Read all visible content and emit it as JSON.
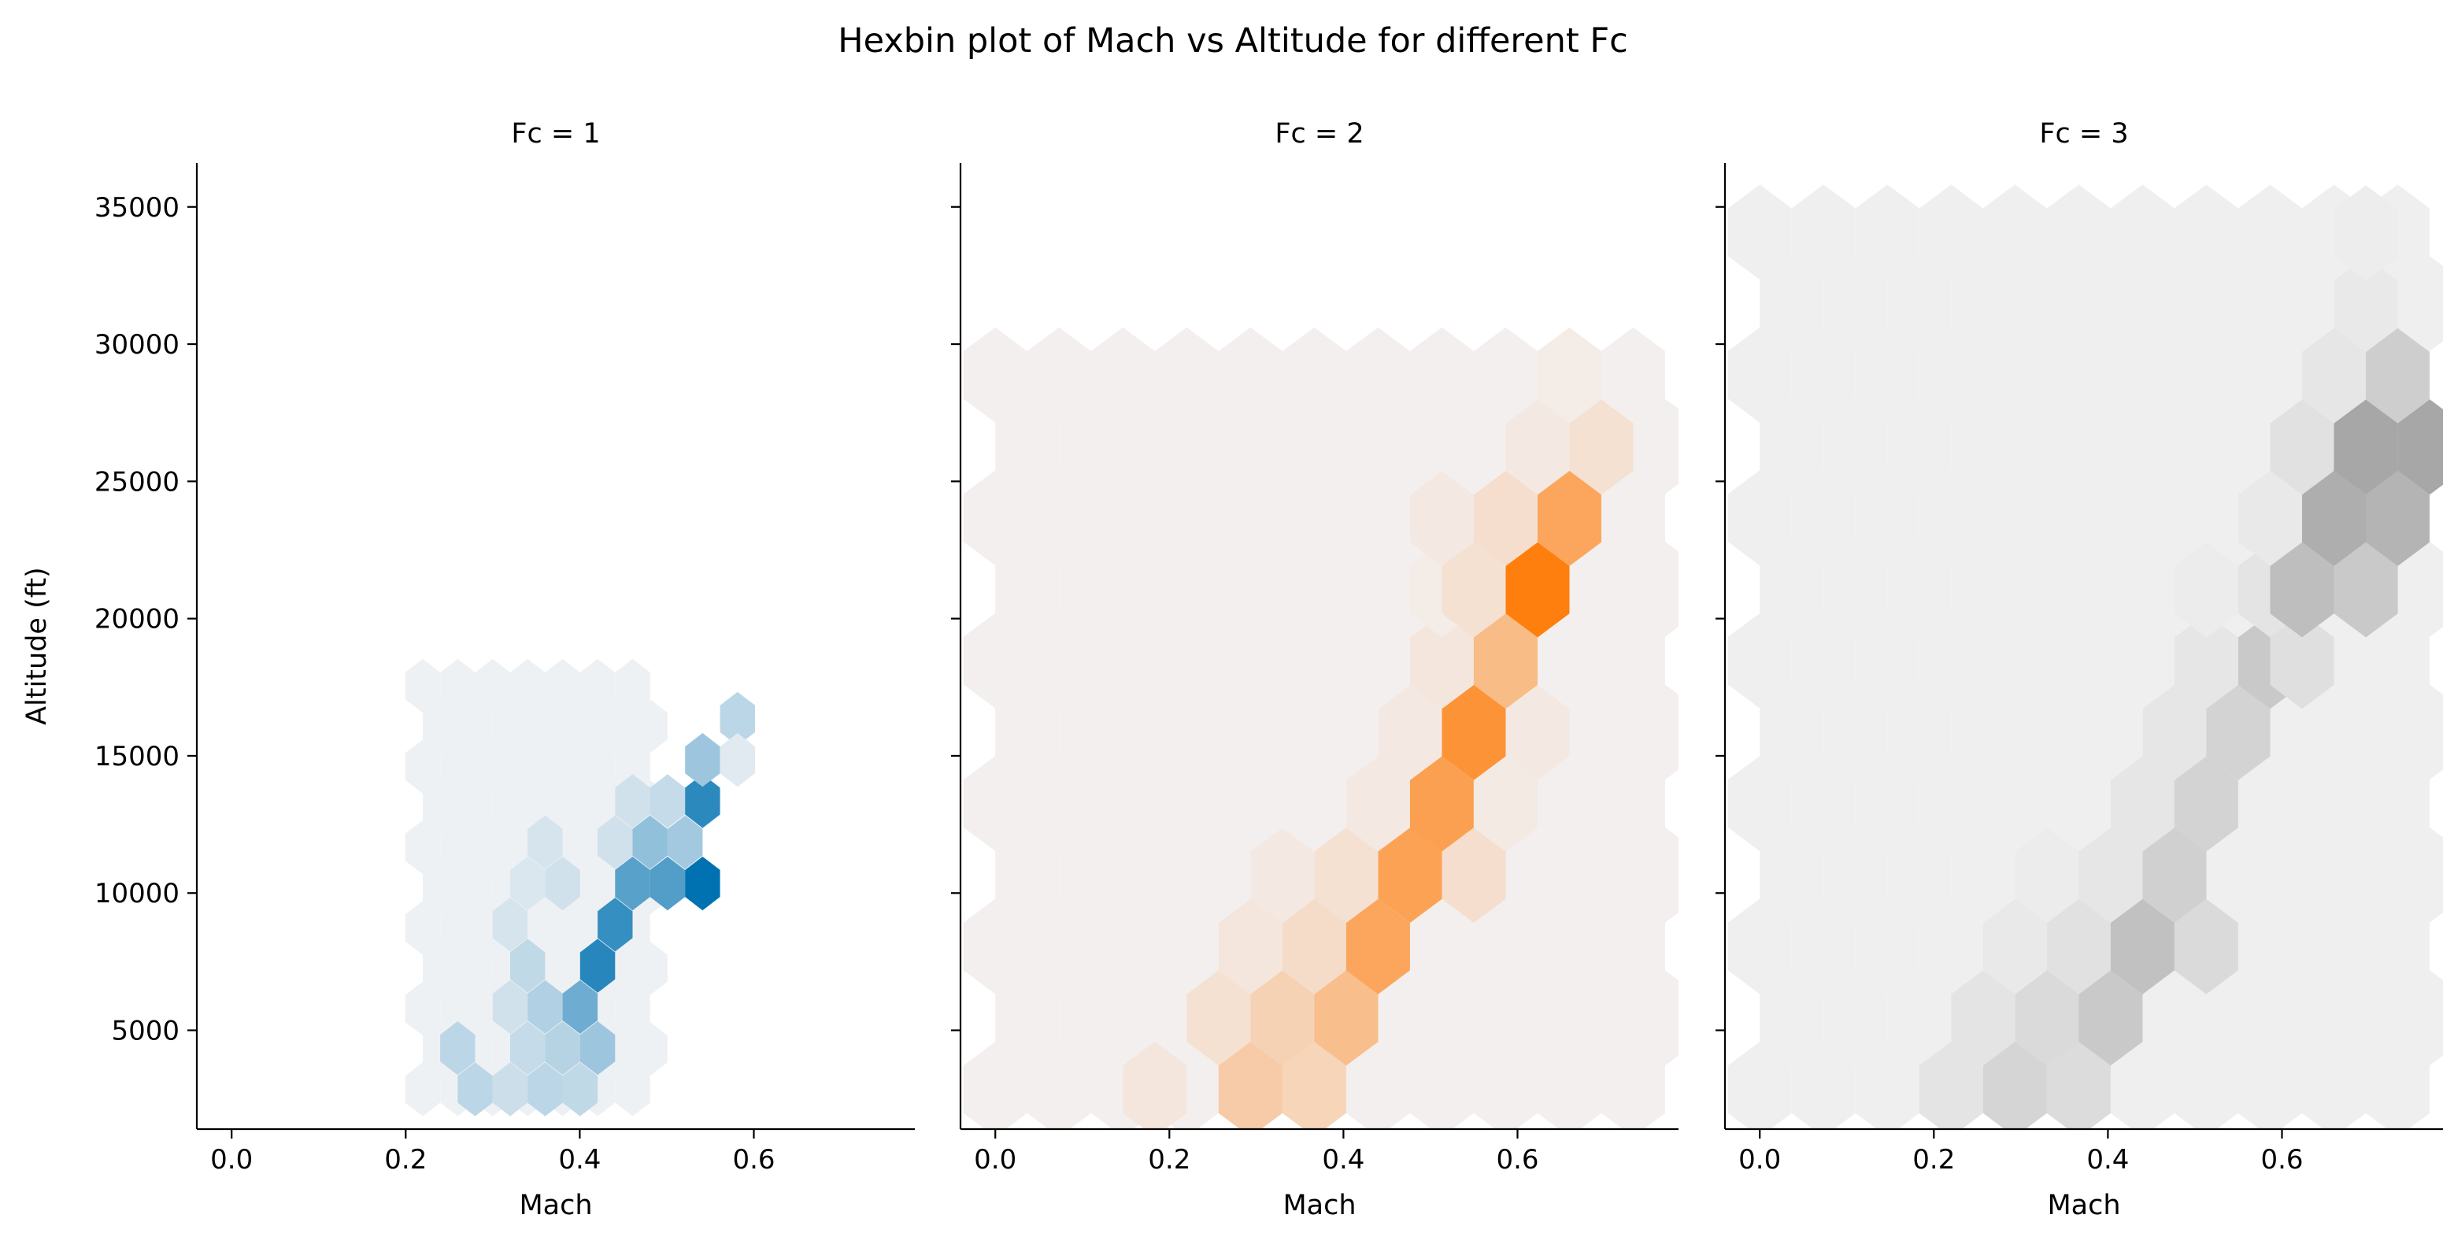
{
  "figure": {
    "title": "Hexbin plot of Mach vs Altitude for different Fc"
  },
  "chart_data": {
    "type": "heatmap",
    "subtype": "hexbin",
    "xlabel": "Mach",
    "ylabel": "Altitude (ft)",
    "xlim": [
      -0.04,
      0.785
    ],
    "ylim": [
      1400,
      36600
    ],
    "xticks": [
      0.0,
      0.2,
      0.4,
      0.6
    ],
    "xtick_labels": [
      "0.0",
      "0.2",
      "0.4",
      "0.6"
    ],
    "yticks": [
      5000,
      10000,
      15000,
      20000,
      25000,
      30000,
      35000
    ],
    "ytick_labels": [
      "5000",
      "10000",
      "15000",
      "20000",
      "25000",
      "30000",
      "35000"
    ],
    "sharey": true,
    "panels": [
      {
        "title": "Fc = 1",
        "color": "#0072b2",
        "light": "#eef1f4",
        "hex_width": 0.0402,
        "hex_height": 1960,
        "x_start": 0.2195,
        "y_start": 2850,
        "cols": 7,
        "rows": 11,
        "cells": [
          {
            "x": 0.2597,
            "y": 4350,
            "v": 0.18
          },
          {
            "x": 0.2798,
            "y": 2850,
            "v": 0.18
          },
          {
            "x": 0.32,
            "y": 2850,
            "v": 0.12
          },
          {
            "x": 0.3602,
            "y": 2850,
            "v": 0.18
          },
          {
            "x": 0.4004,
            "y": 2850,
            "v": 0.16
          },
          {
            "x": 0.3401,
            "y": 4350,
            "v": 0.14
          },
          {
            "x": 0.3803,
            "y": 4350,
            "v": 0.2
          },
          {
            "x": 0.4205,
            "y": 4350,
            "v": 0.3
          },
          {
            "x": 0.32,
            "y": 5850,
            "v": 0.1
          },
          {
            "x": 0.3602,
            "y": 5850,
            "v": 0.22
          },
          {
            "x": 0.4004,
            "y": 5850,
            "v": 0.5
          },
          {
            "x": 0.3401,
            "y": 7350,
            "v": 0.16
          },
          {
            "x": 0.4205,
            "y": 7350,
            "v": 0.82
          },
          {
            "x": 0.32,
            "y": 8850,
            "v": 0.08
          },
          {
            "x": 0.4406,
            "y": 8850,
            "v": 0.75
          },
          {
            "x": 0.3401,
            "y": 10350,
            "v": 0.06
          },
          {
            "x": 0.3803,
            "y": 10350,
            "v": 0.1
          },
          {
            "x": 0.4607,
            "y": 10350,
            "v": 0.6
          },
          {
            "x": 0.5009,
            "y": 10350,
            "v": 0.62
          },
          {
            "x": 0.5411,
            "y": 10350,
            "v": 1.0
          },
          {
            "x": 0.3602,
            "y": 11850,
            "v": 0.08
          },
          {
            "x": 0.4406,
            "y": 11850,
            "v": 0.1
          },
          {
            "x": 0.4808,
            "y": 11850,
            "v": 0.35
          },
          {
            "x": 0.521,
            "y": 11850,
            "v": 0.28
          },
          {
            "x": 0.4607,
            "y": 13350,
            "v": 0.1
          },
          {
            "x": 0.5009,
            "y": 13350,
            "v": 0.14
          },
          {
            "x": 0.5411,
            "y": 13350,
            "v": 0.8
          },
          {
            "x": 0.5411,
            "y": 14850,
            "v": 0.3
          },
          {
            "x": 0.5813,
            "y": 16350,
            "v": 0.18
          },
          {
            "x": 0.5813,
            "y": 14850,
            "v": 0.04
          }
        ]
      },
      {
        "title": "Fc = 2",
        "color": "#ff7f0e",
        "light": "#f3efee",
        "hex_width": 0.0733,
        "hex_height": 3470,
        "x_start": -0.0,
        "y_start": 2850,
        "cols": 11,
        "rows": 11,
        "cells": [
          {
            "x": 0.1833,
            "y": 2850,
            "v": 0.06
          },
          {
            "x": 0.2932,
            "y": 2850,
            "v": 0.28
          },
          {
            "x": 0.3665,
            "y": 2850,
            "v": 0.2
          },
          {
            "x": 0.2565,
            "y": 5450,
            "v": 0.1
          },
          {
            "x": 0.3299,
            "y": 5450,
            "v": 0.22
          },
          {
            "x": 0.4032,
            "y": 5450,
            "v": 0.4
          },
          {
            "x": 0.2932,
            "y": 8050,
            "v": 0.06
          },
          {
            "x": 0.3665,
            "y": 8050,
            "v": 0.14
          },
          {
            "x": 0.4398,
            "y": 8050,
            "v": 0.62
          },
          {
            "x": 0.3299,
            "y": 10650,
            "v": 0.04
          },
          {
            "x": 0.4032,
            "y": 10650,
            "v": 0.1
          },
          {
            "x": 0.4765,
            "y": 10650,
            "v": 0.66
          },
          {
            "x": 0.5498,
            "y": 10650,
            "v": 0.12
          },
          {
            "x": 0.4398,
            "y": 13250,
            "v": 0.04
          },
          {
            "x": 0.5131,
            "y": 13250,
            "v": 0.68
          },
          {
            "x": 0.5864,
            "y": 13250,
            "v": 0.03
          },
          {
            "x": 0.4765,
            "y": 15850,
            "v": 0.04
          },
          {
            "x": 0.5498,
            "y": 15850,
            "v": 0.8
          },
          {
            "x": 0.6231,
            "y": 15850,
            "v": 0.04
          },
          {
            "x": 0.5131,
            "y": 18450,
            "v": 0.06
          },
          {
            "x": 0.5864,
            "y": 18450,
            "v": 0.42
          },
          {
            "x": 0.5131,
            "y": 21050,
            "v": 0.02
          },
          {
            "x": 0.5498,
            "y": 21050,
            "v": 0.1
          },
          {
            "x": 0.6231,
            "y": 21050,
            "v": 1.0
          },
          {
            "x": 0.5131,
            "y": 23650,
            "v": 0.04
          },
          {
            "x": 0.5864,
            "y": 23650,
            "v": 0.12
          },
          {
            "x": 0.6597,
            "y": 23650,
            "v": 0.62
          },
          {
            "x": 0.6231,
            "y": 26250,
            "v": 0.04
          },
          {
            "x": 0.6964,
            "y": 26250,
            "v": 0.1
          },
          {
            "x": 0.6597,
            "y": 28850,
            "v": 0.02
          }
        ]
      },
      {
        "title": "Fc = 3",
        "color": "#808080",
        "light": "#efefef",
        "hex_width": 0.0733,
        "hex_height": 3470,
        "x_start": -0.0,
        "y_start": 2850,
        "cols": 11,
        "rows": 13,
        "cells": [
          {
            "x": 0.2199,
            "y": 2850,
            "v": 0.08
          },
          {
            "x": 0.2932,
            "y": 2850,
            "v": 0.2
          },
          {
            "x": 0.3665,
            "y": 2850,
            "v": 0.14
          },
          {
            "x": 0.2565,
            "y": 5450,
            "v": 0.08
          },
          {
            "x": 0.3299,
            "y": 5450,
            "v": 0.16
          },
          {
            "x": 0.4032,
            "y": 5450,
            "v": 0.3
          },
          {
            "x": 0.2932,
            "y": 8050,
            "v": 0.04
          },
          {
            "x": 0.3665,
            "y": 8050,
            "v": 0.1
          },
          {
            "x": 0.4398,
            "y": 8050,
            "v": 0.38
          },
          {
            "x": 0.5131,
            "y": 8050,
            "v": 0.16
          },
          {
            "x": 0.3299,
            "y": 10650,
            "v": 0.02
          },
          {
            "x": 0.4032,
            "y": 10650,
            "v": 0.06
          },
          {
            "x": 0.4765,
            "y": 10650,
            "v": 0.24
          },
          {
            "x": 0.4398,
            "y": 13250,
            "v": 0.06
          },
          {
            "x": 0.5131,
            "y": 13250,
            "v": 0.22
          },
          {
            "x": 0.4765,
            "y": 15850,
            "v": 0.06
          },
          {
            "x": 0.5498,
            "y": 15850,
            "v": 0.22
          },
          {
            "x": 0.5131,
            "y": 18450,
            "v": 0.06
          },
          {
            "x": 0.5864,
            "y": 18450,
            "v": 0.3
          },
          {
            "x": 0.6231,
            "y": 18450,
            "v": 0.12
          },
          {
            "x": 0.5131,
            "y": 21050,
            "v": 0.02
          },
          {
            "x": 0.5864,
            "y": 21050,
            "v": 0.08
          },
          {
            "x": 0.6231,
            "y": 21050,
            "v": 0.4
          },
          {
            "x": 0.6964,
            "y": 21050,
            "v": 0.3
          },
          {
            "x": 0.5864,
            "y": 23650,
            "v": 0.04
          },
          {
            "x": 0.6597,
            "y": 23650,
            "v": 0.55
          },
          {
            "x": 0.733,
            "y": 23650,
            "v": 0.5
          },
          {
            "x": 0.6231,
            "y": 26250,
            "v": 0.1
          },
          {
            "x": 0.6964,
            "y": 26250,
            "v": 0.62
          },
          {
            "x": 0.7697,
            "y": 26250,
            "v": 0.62
          },
          {
            "x": 0.6597,
            "y": 28850,
            "v": 0.06
          },
          {
            "x": 0.733,
            "y": 28850,
            "v": 0.26
          },
          {
            "x": 0.6964,
            "y": 31450,
            "v": 0.04
          },
          {
            "x": 0.6964,
            "y": 34050,
            "v": 0.01
          }
        ]
      }
    ]
  }
}
